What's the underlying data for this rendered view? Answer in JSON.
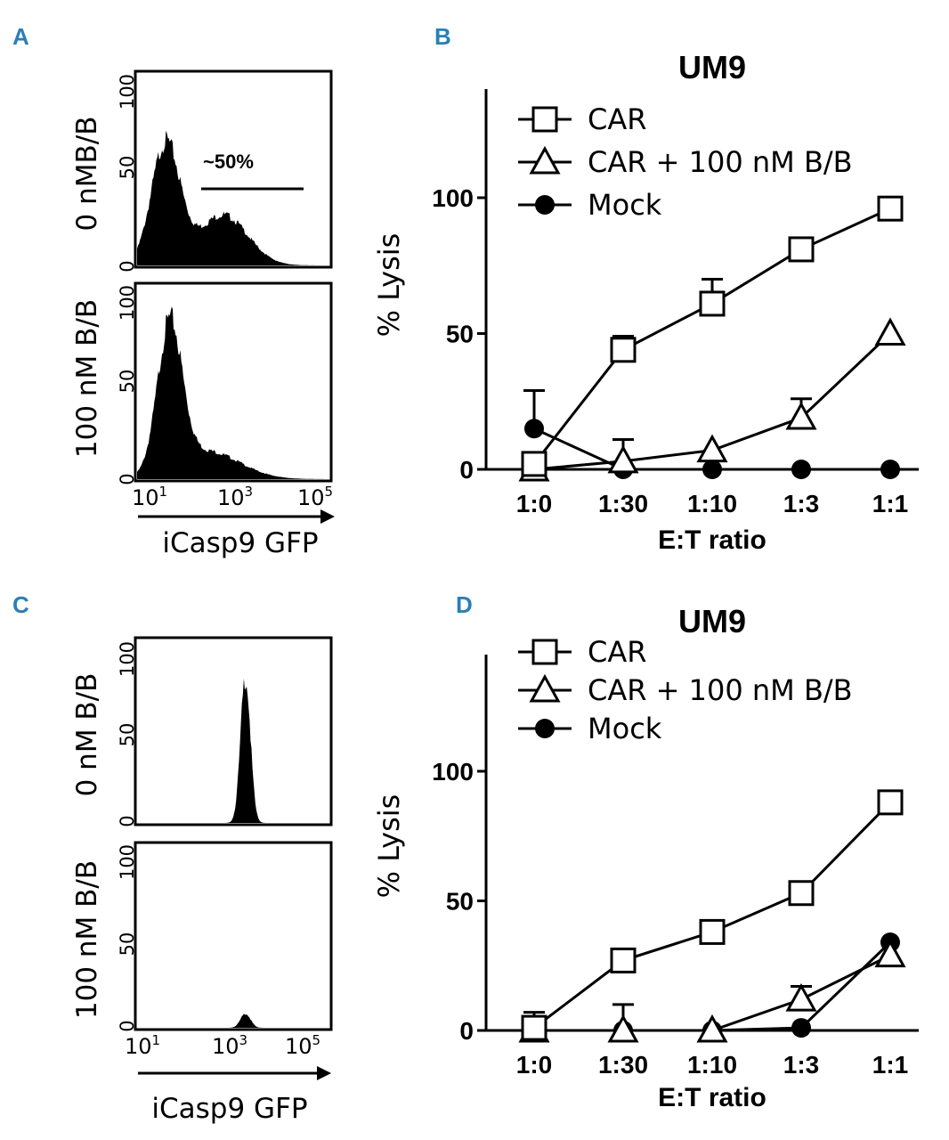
{
  "chart_data": [
    {
      "panel": "A",
      "type": "histogram",
      "xlabel": "iCasp9 GFP",
      "x_ticks": [
        "10",
        "1",
        "10",
        "3",
        "10",
        "5"
      ],
      "y_ticks": [
        "0",
        "50",
        "100"
      ],
      "rows": [
        {
          "label": "0 nMB/B",
          "gate_label": "~50%",
          "peaks": [
            {
              "center": 1.2,
              "width": 0.35,
              "height": 65
            },
            {
              "center": 2.6,
              "width": 0.6,
              "height": 27
            }
          ]
        },
        {
          "label": "100 nM  B/B",
          "gate_label": "",
          "peaks": [
            {
              "center": 1.3,
              "width": 0.3,
              "height": 78
            },
            {
              "center": 2.2,
              "width": 0.8,
              "height": 15
            }
          ]
        }
      ]
    },
    {
      "panel": "B",
      "type": "line",
      "title": "UM9",
      "xlabel": "E:T ratio",
      "ylabel": "% Lysis",
      "categories": [
        "1:0",
        "1:30",
        "1:10",
        "1:3",
        "1:1"
      ],
      "ylim": [
        0,
        140
      ],
      "yticks": [
        "0",
        "50",
        "100"
      ],
      "series": [
        {
          "name": "CAR",
          "marker": "square",
          "values": [
            2,
            44,
            61,
            81,
            96
          ],
          "err": [
            0,
            5,
            9,
            0,
            0
          ]
        },
        {
          "name": "CAR + 100 nM B/B",
          "marker": "triangle",
          "values": [
            0,
            3,
            7,
            19,
            50
          ],
          "err": [
            0,
            8,
            0,
            7,
            0
          ]
        },
        {
          "name": "Mock",
          "marker": "circle",
          "values": [
            15,
            0,
            0,
            0,
            0
          ],
          "err": [
            14,
            0,
            0,
            0,
            0
          ]
        }
      ]
    },
    {
      "panel": "C",
      "type": "histogram",
      "xlabel": "iCasp9 GFP",
      "x_ticks": [
        "10",
        "1",
        "10",
        "3",
        "10",
        "5"
      ],
      "y_ticks": [
        "0",
        "50",
        "100"
      ],
      "rows": [
        {
          "label": "0 nM  B/B",
          "gate_label": "",
          "peaks": [
            {
              "center": 3.15,
              "width": 0.12,
              "height": 82
            }
          ]
        },
        {
          "label": "100 nM  B/B",
          "gate_label": "",
          "peaks": [
            {
              "center": 3.15,
              "width": 0.12,
              "height": 8
            }
          ]
        }
      ]
    },
    {
      "panel": "D",
      "type": "line",
      "title": "UM9",
      "xlabel": "E:T ratio",
      "ylabel": "% Lysis",
      "categories": [
        "1:0",
        "1:30",
        "1:10",
        "1:3",
        "1:1"
      ],
      "ylim": [
        0,
        145
      ],
      "yticks": [
        "0",
        "50",
        "100"
      ],
      "series": [
        {
          "name": "CAR",
          "marker": "square",
          "values": [
            1,
            27,
            38,
            53,
            88
          ],
          "err": [
            6,
            0,
            0,
            0,
            0
          ]
        },
        {
          "name": "CAR + 100 nM B/B",
          "marker": "triangle",
          "values": [
            0,
            0,
            0,
            12,
            29
          ],
          "err": [
            0,
            10,
            0,
            5,
            0
          ]
        },
        {
          "name": "Mock",
          "marker": "circle",
          "values": [
            0,
            0,
            0,
            1,
            34
          ],
          "err": [
            0,
            0,
            0,
            0,
            0
          ]
        }
      ]
    }
  ]
}
